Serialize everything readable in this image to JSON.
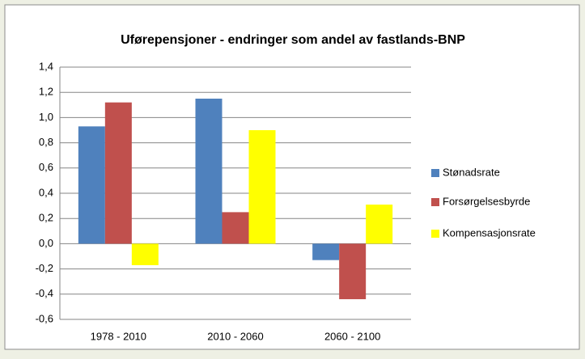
{
  "chart_data": {
    "type": "bar",
    "title": "Uførepensjoner - endringer som andel av fastlands-BNP",
    "categories": [
      "1978 - 2010",
      "2010 - 2060",
      "2060 - 2100"
    ],
    "series": [
      {
        "name": "Stønadsrate",
        "color": "#4f81bd",
        "values": [
          0.93,
          1.15,
          -0.13
        ]
      },
      {
        "name": "Forsørgelsesbyrde",
        "color": "#c0504d",
        "values": [
          1.12,
          0.25,
          -0.44
        ]
      },
      {
        "name": "Kompensasjonsrate",
        "color": "#ffff00",
        "values": [
          -0.17,
          0.9,
          0.31
        ]
      }
    ],
    "ylim": [
      -0.6,
      1.4
    ],
    "yticks": [
      {
        "value": -0.6,
        "label": "-0,6"
      },
      {
        "value": -0.4,
        "label": "-0,4"
      },
      {
        "value": -0.2,
        "label": "-0,2"
      },
      {
        "value": 0,
        "label": "0,0"
      },
      {
        "value": 0.2,
        "label": "0,2"
      },
      {
        "value": 0.4,
        "label": "0,4"
      },
      {
        "value": 0.6,
        "label": "0,6"
      },
      {
        "value": 0.8,
        "label": "0,8"
      },
      {
        "value": 1.0,
        "label": "1,0"
      },
      {
        "value": 1.2,
        "label": "1,2"
      },
      {
        "value": 1.4,
        "label": "1,4"
      }
    ],
    "grid": true,
    "legend": "right"
  }
}
